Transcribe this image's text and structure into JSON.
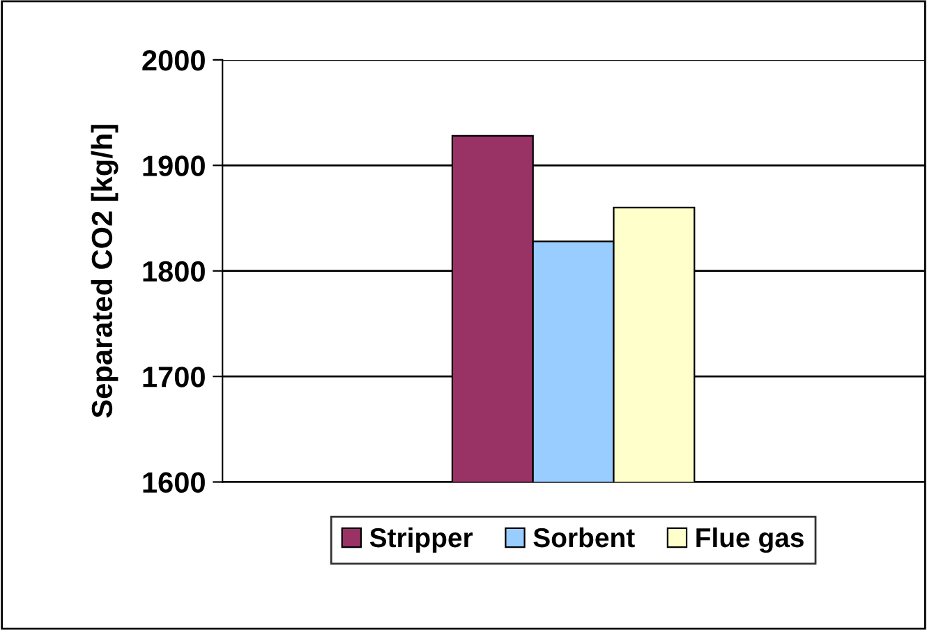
{
  "chart_data": {
    "type": "bar",
    "ylabel": "Separated CO2 [kg/h]",
    "categories": [
      null
    ],
    "series": [
      {
        "name": "Stripper",
        "color": "#993366",
        "values": [
          1928
        ]
      },
      {
        "name": "Sorbent",
        "color": "#99ccff",
        "values": [
          1828
        ]
      },
      {
        "name": "Flue gas",
        "color": "#ffffcc",
        "values": [
          1860
        ]
      }
    ],
    "ylim": [
      1600,
      2000
    ],
    "yticks": [
      1600,
      1700,
      1800,
      1900,
      2000
    ],
    "grid": "y",
    "legend": "bottom"
  }
}
